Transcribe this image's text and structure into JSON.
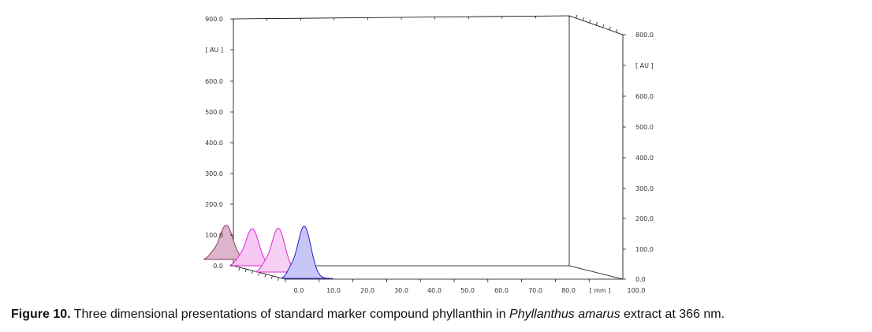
{
  "chart_data": {
    "type": "line",
    "projection": "3d",
    "left_y_ticks": [
      "900.0",
      "[ AU ]",
      "600.0",
      "500.0",
      "400.0",
      "300.0",
      "200.0",
      "100.0",
      "0.0"
    ],
    "right_y_ticks": [
      "800.0",
      "[ AU ]",
      "600.0",
      "500.0",
      "400.0",
      "300.0",
      "200.0",
      "100.0",
      "0.0"
    ],
    "x_ticks": [
      "0.0",
      "10.0",
      "20.0",
      "30.0",
      "40.0",
      "50.0",
      "60.0",
      "70.0",
      "80.0",
      "[ mm ]",
      "100.0"
    ],
    "ylim": [
      0,
      900
    ],
    "xlim": [
      0,
      100
    ],
    "series": [
      {
        "track": 1,
        "peak_x": 6.5,
        "peak_y": 125,
        "color": "#8a3a5a",
        "fill": "#dcb4cc"
      },
      {
        "track": 2,
        "peak_x": 6.5,
        "peak_y": 135,
        "color": "#e01ee0",
        "fill": "#f8c8f4"
      },
      {
        "track": 3,
        "peak_x": 6.5,
        "peak_y": 160,
        "color": "#d42cc8",
        "fill": "#f6d0f2"
      },
      {
        "track": 4,
        "peak_x": 6.5,
        "peak_y": 190,
        "color": "#2a1ecc",
        "fill": "#c8c6f6"
      }
    ]
  },
  "caption": {
    "label": "Figure 10.",
    "text_before": " Three dimensional presentations of standard marker compound phyllanthin in ",
    "species": "Phyllanthus amarus",
    "text_after": " extract at 366 nm."
  }
}
